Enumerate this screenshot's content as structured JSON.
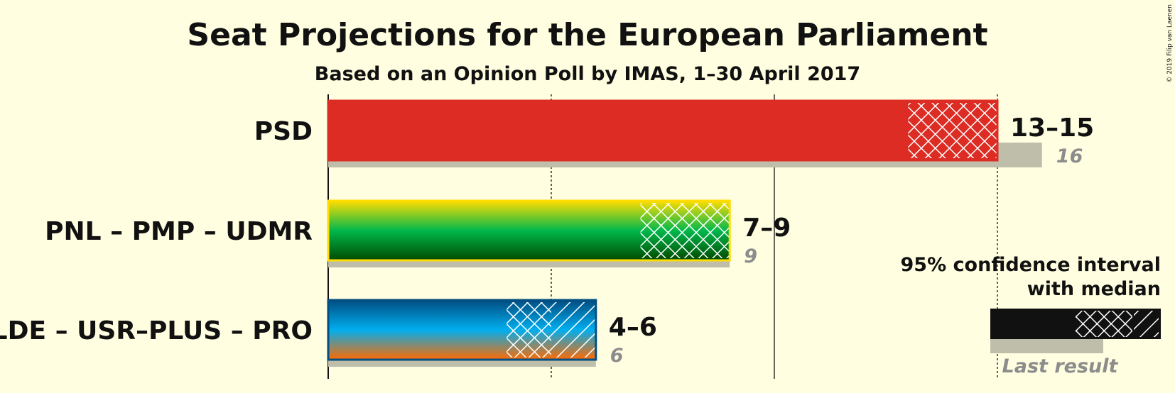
{
  "copyright": "© 2019 Filip van Laenen",
  "legend": {
    "line1": "95% confidence interval",
    "line2": "with median",
    "last_result": "Last result"
  },
  "colors": {
    "background": "#FFFEE0",
    "last_result_bar": "#BFBEAB",
    "text": "#111111"
  },
  "chart_data": {
    "type": "bar",
    "title": "Seat Projections for the European Parliament",
    "subtitle": "Based on an Opinion Poll by IMAS, 1–30 April 2017",
    "xlim": [
      0,
      16
    ],
    "gridlines": [
      0,
      5,
      10,
      15
    ],
    "parties": [
      {
        "name": "PSD",
        "ci_low": 13,
        "median": 15,
        "ci_high": 15,
        "range_label": "13–15",
        "last_result": 16,
        "last_label": "16",
        "colors": [
          "#DC2C24"
        ]
      },
      {
        "name": "PNL – PMP – UDMR",
        "ci_low": 7,
        "median": 9,
        "ci_high": 9,
        "range_label": "7–9",
        "last_result": 9,
        "last_label": "9",
        "colors": [
          "#FFDD00",
          "#00B84C",
          "#004A00"
        ]
      },
      {
        "name": "ALDE – USR–PLUS – PRO",
        "ci_low": 4,
        "median": 5,
        "ci_high": 6,
        "range_label": "4–6",
        "last_result": 6,
        "last_label": "6",
        "colors": [
          "#004E82",
          "#00AEEF",
          "#FF6A00"
        ]
      }
    ]
  }
}
